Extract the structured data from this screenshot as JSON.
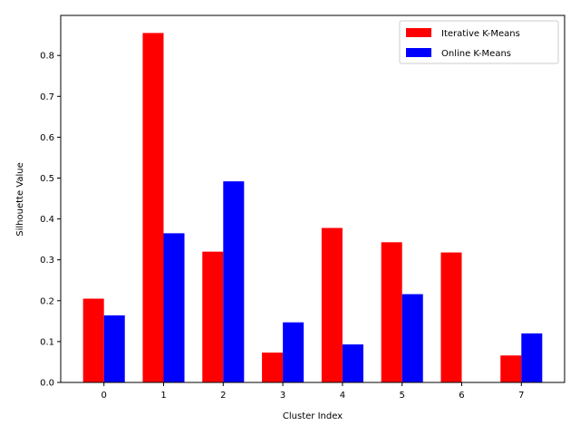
{
  "chart_data": {
    "type": "bar",
    "categories": [
      "0",
      "1",
      "2",
      "3",
      "4",
      "5",
      "6",
      "7"
    ],
    "series": [
      {
        "name": "Iterative K-Means",
        "color": "#ff0000",
        "values": [
          0.205,
          0.855,
          0.32,
          0.073,
          0.378,
          0.343,
          0.318,
          0.066
        ]
      },
      {
        "name": "Online K-Means",
        "color": "#0000ff",
        "values": [
          0.164,
          0.365,
          0.492,
          0.147,
          0.093,
          0.216,
          0.0,
          0.12
        ]
      }
    ],
    "xlabel": "Cluster Index",
    "ylabel": "Silhouette Value",
    "ylim": [
      0,
      0.898
    ],
    "yticks": [
      "0.0",
      "0.1",
      "0.2",
      "0.3",
      "0.4",
      "0.5",
      "0.6",
      "0.7",
      "0.8"
    ],
    "legend_position": "top-right",
    "grid": false
  }
}
